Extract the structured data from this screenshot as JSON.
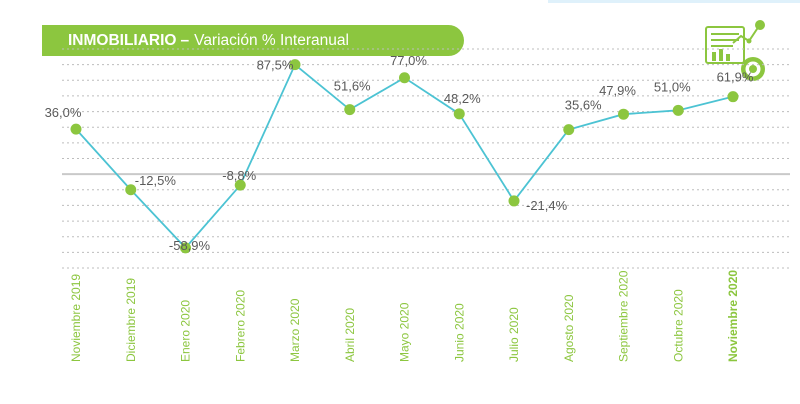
{
  "header": {
    "title_bold": "INMOBILIARIO",
    "separator": "–",
    "title_rest": "Variación % Interanual"
  },
  "icons": {
    "header_icon": "chart-report-icon"
  },
  "colors": {
    "accent_green": "#8cc63f",
    "line": "#4cc3d3",
    "marker": "#8cc63f",
    "gridline": "#bdbdbd",
    "zero_line": "#c9c9c9"
  },
  "chart_data": {
    "type": "line",
    "title": "INMOBILIARIO – Variación % Interanual",
    "xlabel": "",
    "ylabel": "",
    "categories": [
      "Noviembre 2019",
      "Diciembre 2019",
      "Enero 2020",
      "Febrero 2020",
      "Marzo 2020",
      "Abril 2020",
      "Mayo 2020",
      "Junio 2020",
      "Julio 2020",
      "Agosto 2020",
      "Septiembre 2020",
      "Octubre 2020",
      "Noviembre 2020"
    ],
    "values": [
      36.0,
      -12.5,
      -58.9,
      -8.8,
      87.5,
      51.6,
      77.0,
      48.2,
      -21.4,
      35.6,
      47.9,
      51.0,
      61.9
    ],
    "labels": [
      "36,0%",
      "-12,5%",
      "-58,9%",
      "-8,8%",
      "87,5%",
      "51,6%",
      "77,0%",
      "48,2%",
      "-21,4%",
      "35,6%",
      "47,9%",
      "51,0%",
      "61,9%"
    ],
    "ylim": [
      -75,
      100
    ],
    "grid": true,
    "legend": "none",
    "y_tick_labels_shown": false
  }
}
